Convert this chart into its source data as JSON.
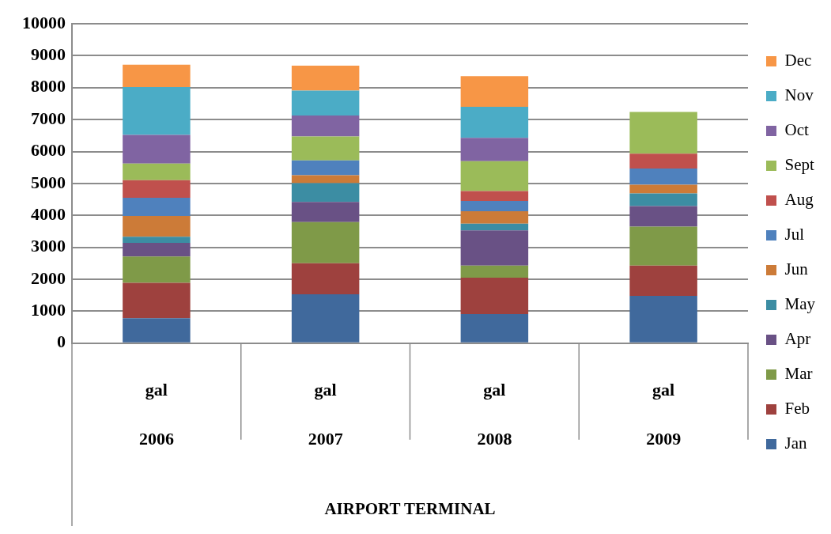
{
  "chart_data": {
    "type": "bar",
    "stacked": true,
    "categories": [
      "gal\n2006",
      "gal\n2007",
      "gal\n2008",
      "gal\n2009"
    ],
    "annotations": [
      "AIRPORT TERMINAL"
    ],
    "ylim": [
      0,
      10000
    ],
    "yticks": [
      0,
      1000,
      2000,
      3000,
      4000,
      5000,
      6000,
      7000,
      8000,
      9000,
      10000
    ],
    "grid": "y",
    "legend": "right",
    "series": [
      {
        "name": "Jan",
        "color": "#40699c",
        "values": [
          780,
          1530,
          910,
          1480
        ]
      },
      {
        "name": "Feb",
        "color": "#9e413e",
        "values": [
          1110,
          970,
          1140,
          950
        ]
      },
      {
        "name": "Mar",
        "color": "#7f9a48",
        "values": [
          820,
          1290,
          380,
          1220
        ]
      },
      {
        "name": "Apr",
        "color": "#695185",
        "values": [
          430,
          630,
          1100,
          640
        ]
      },
      {
        "name": "May",
        "color": "#3c8da3",
        "values": [
          190,
          590,
          210,
          400
        ]
      },
      {
        "name": "Jun",
        "color": "#cc7b38",
        "values": [
          650,
          250,
          390,
          270
        ]
      },
      {
        "name": "Jul",
        "color": "#4f81bd",
        "values": [
          570,
          460,
          320,
          510
        ]
      },
      {
        "name": "Aug",
        "color": "#c0504d",
        "values": [
          550,
          null,
          310,
          460
        ]
      },
      {
        "name": "Sept",
        "color": "#9bbb59",
        "values": [
          520,
          750,
          940,
          1310
        ]
      },
      {
        "name": "Oct",
        "color": "#8064a2",
        "values": [
          900,
          660,
          730,
          null
        ]
      },
      {
        "name": "Nov",
        "color": "#4bacc6",
        "values": [
          1500,
          780,
          970,
          null
        ]
      },
      {
        "name": "Dec",
        "color": "#f79646",
        "values": [
          700,
          780,
          960,
          null
        ]
      }
    ]
  }
}
